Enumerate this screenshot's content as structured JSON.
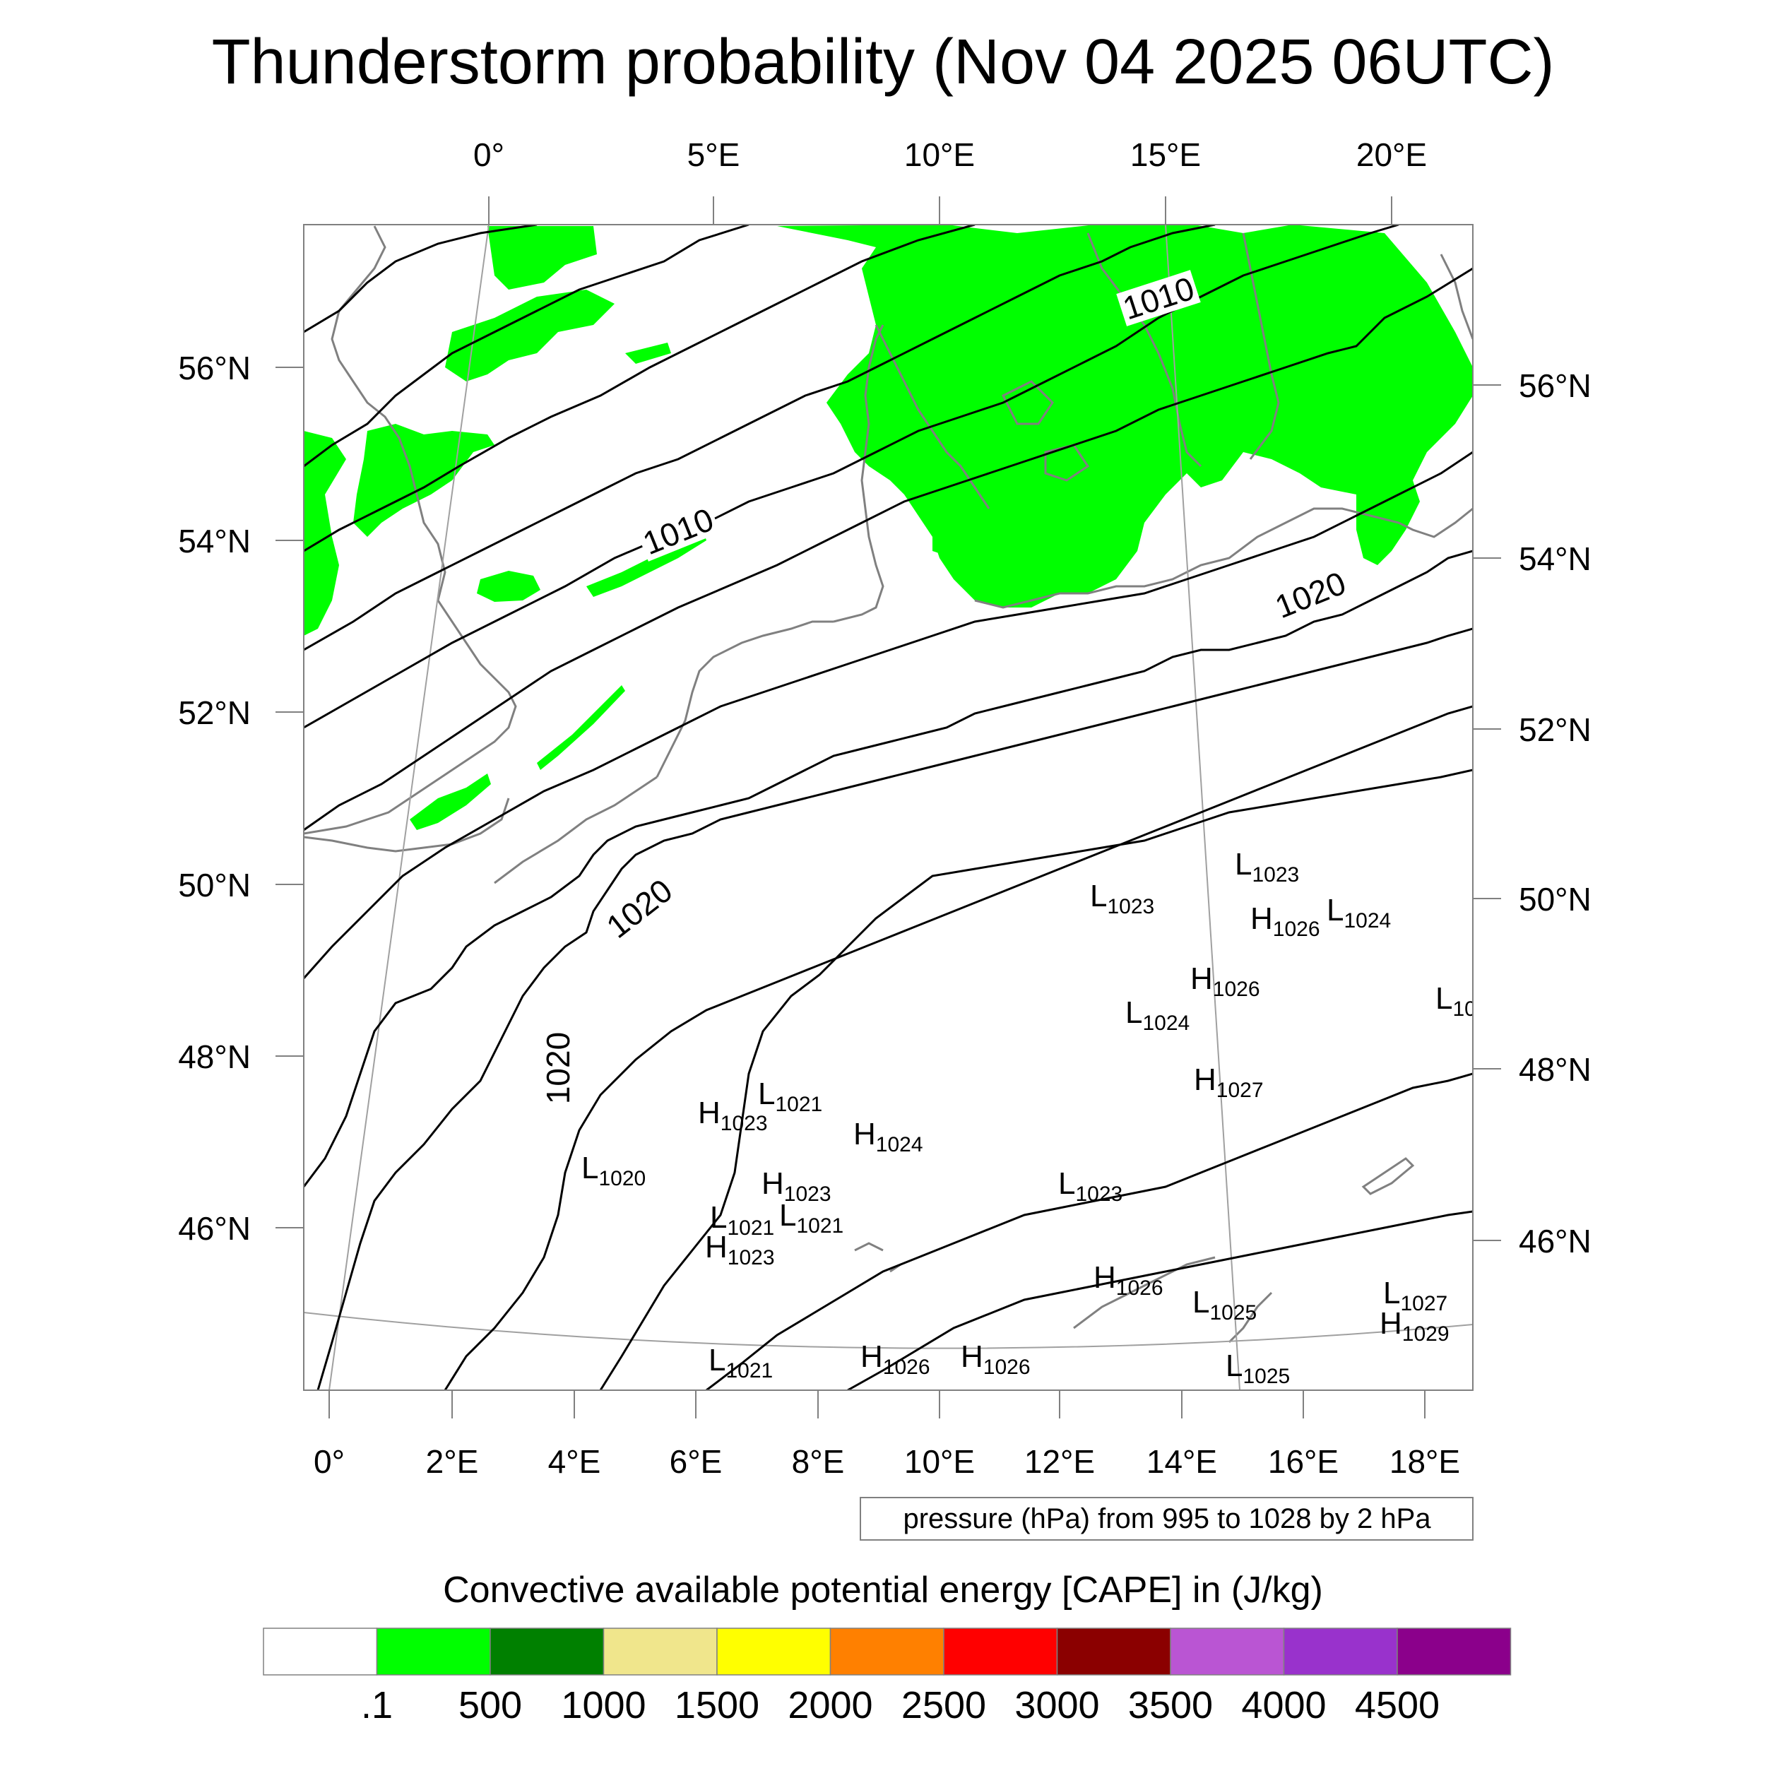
{
  "title": "Thunderstorm probability (Nov 04 2025 06UTC)",
  "axes": {
    "top_lon_labels": [
      "0°",
      "5°E",
      "10°E",
      "15°E",
      "20°E"
    ],
    "bottom_lon_labels": [
      "0°",
      "2°E",
      "4°E",
      "6°E",
      "8°E",
      "10°E",
      "12°E",
      "14°E",
      "16°E",
      "18°E"
    ],
    "left_lat_labels": [
      "56°N",
      "54°N",
      "52°N",
      "50°N",
      "48°N",
      "46°N"
    ],
    "right_lat_labels": [
      "56°N",
      "54°N",
      "52°N",
      "50°N",
      "48°N",
      "46°N"
    ]
  },
  "isobar_labels": [
    "1010",
    "1010",
    "1020",
    "1020",
    "1020"
  ],
  "pressure_centers": [
    {
      "type": "L",
      "value": "1023"
    },
    {
      "type": "L",
      "value": "1023"
    },
    {
      "type": "H",
      "value": "1026"
    },
    {
      "type": "L",
      "value": "1024"
    },
    {
      "type": "H",
      "value": "1026"
    },
    {
      "type": "L",
      "value": "1024"
    },
    {
      "type": "L",
      "value": "10"
    },
    {
      "type": "H",
      "value": "1027"
    },
    {
      "type": "H",
      "value": "1023"
    },
    {
      "type": "L",
      "value": "1021"
    },
    {
      "type": "H",
      "value": "1024"
    },
    {
      "type": "L",
      "value": "1020"
    },
    {
      "type": "H",
      "value": "1023"
    },
    {
      "type": "L",
      "value": "1021"
    },
    {
      "type": "L",
      "value": "1021"
    },
    {
      "type": "H",
      "value": "1023"
    },
    {
      "type": "L",
      "value": "1023"
    },
    {
      "type": "H",
      "value": "1026"
    },
    {
      "type": "L",
      "value": "1025"
    },
    {
      "type": "L",
      "value": "1027"
    },
    {
      "type": "H",
      "value": "1029"
    },
    {
      "type": "L",
      "value": "1021"
    },
    {
      "type": "H",
      "value": "1026"
    },
    {
      "type": "H",
      "value": "1026"
    },
    {
      "type": "L",
      "value": "1025"
    }
  ],
  "info_box": "pressure (hPa) from 995 to 1028 by 2 hPa",
  "colorbar": {
    "title": "Convective available potential energy [CAPE] in (J/kg)",
    "colors": [
      "#ffffff",
      "#00ff00",
      "#008000",
      "#f0e68c",
      "#ffff00",
      "#ff8000",
      "#ff0000",
      "#8b0000",
      "#ba55d3",
      "#9932cc",
      "#8b008b"
    ],
    "labels": [
      ".1",
      "500",
      "1000",
      "1500",
      "2000",
      "2500",
      "3000",
      "3500",
      "4000",
      "4500"
    ]
  },
  "colors": {
    "cape_fill": "#00ff00",
    "coastline": "#808080",
    "isobar": "#000000",
    "frame": "#808080"
  }
}
